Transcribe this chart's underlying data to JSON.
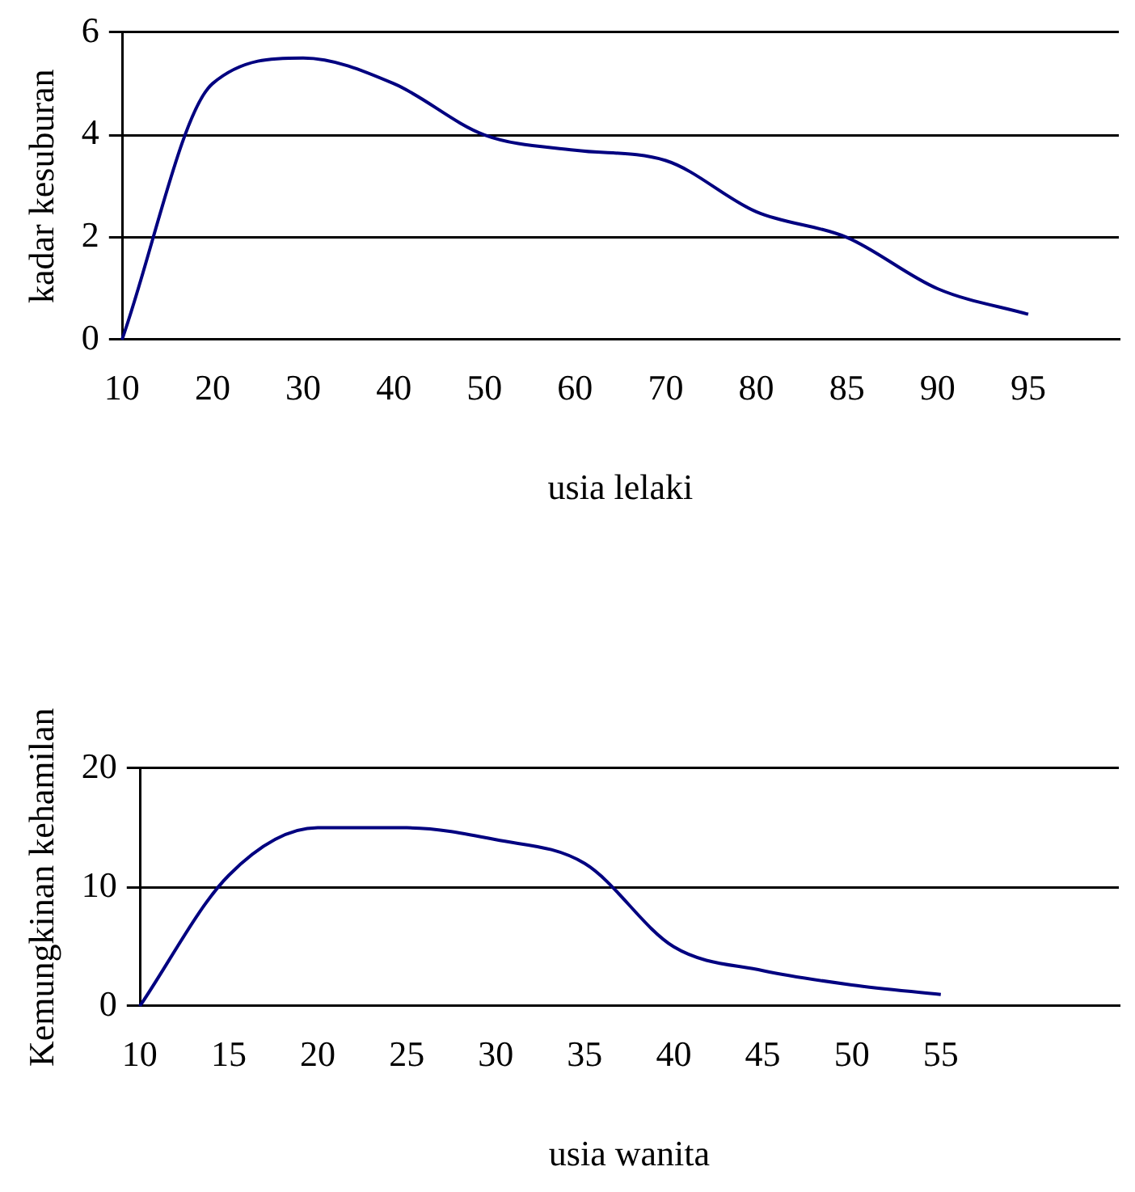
{
  "chart_data": [
    {
      "type": "line",
      "xlabel": "usia lelaki",
      "ylabel": "kadar kesuburan",
      "categories": [
        "10",
        "20",
        "30",
        "40",
        "50",
        "60",
        "70",
        "80",
        "85",
        "90",
        "95",
        null
      ],
      "series": [
        {
          "color": "#000080",
          "values": [
            0,
            5.0,
            5.5,
            5.0,
            4.0,
            3.7,
            3.5,
            2.5,
            2.0,
            1.0,
            0.5,
            null
          ]
        }
      ],
      "ylim": [
        0,
        6
      ],
      "yticks": [
        0,
        2,
        4,
        6
      ],
      "grid": "y",
      "legend": false,
      "marker": "none"
    },
    {
      "type": "line",
      "xlabel": "usia wanita",
      "ylabel": "Kemungkinan kehamilan",
      "categories": [
        "10",
        "15",
        "20",
        "25",
        "30",
        "35",
        "40",
        "45",
        "50",
        "55",
        null,
        null
      ],
      "series": [
        {
          "color": "#000080",
          "values": [
            0,
            11,
            15,
            15,
            14,
            12,
            5,
            3,
            1.8,
            1,
            null,
            null
          ]
        }
      ],
      "ylim": [
        0,
        20
      ],
      "yticks": [
        0,
        10,
        20
      ],
      "grid": "y",
      "legend": false,
      "marker": "none"
    }
  ]
}
